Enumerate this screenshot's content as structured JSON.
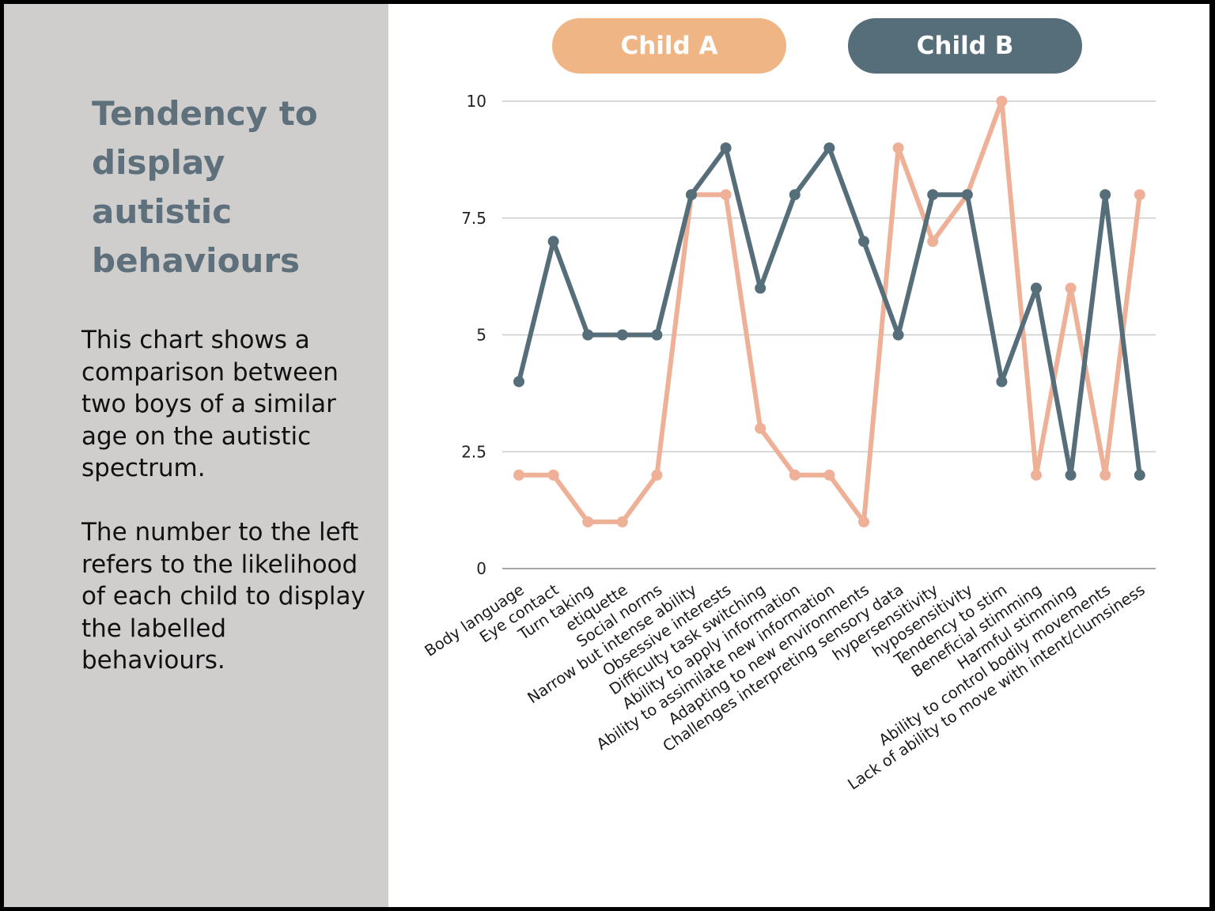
{
  "panel": {
    "title": "Tendency to display autistic behaviours",
    "description_1": "This chart shows a comparison between two boys of a similar age on the autistic spectrum.",
    "description_2": "The number to the left refers to the likelihood of each child to display the labelled behaviours."
  },
  "colors": {
    "panel_bg": "#d0cecd",
    "title": "#5e707c",
    "child_a_pill": "#efb585",
    "child_a_line": "#eeb097",
    "child_b": "#566d7a",
    "grid": "#cccccc"
  },
  "chart_data": {
    "type": "line",
    "title": "",
    "xlabel": "",
    "ylabel": "",
    "ylim": [
      0,
      10
    ],
    "yticks": [
      {
        "value": 0,
        "label": "0"
      },
      {
        "value": 2.5,
        "label": "2.5"
      },
      {
        "value": 5,
        "label": "5"
      },
      {
        "value": 7.5,
        "label": "7.5"
      },
      {
        "value": 10,
        "label": "10"
      }
    ],
    "grid": true,
    "legend": "top",
    "categories": [
      "Body language",
      "Eye contact",
      "Turn taking",
      "etiquette",
      "Social norms",
      "Narrow but intense ability",
      "Obsessive interests",
      "Difficulty task switching",
      "Ability to apply information",
      "Ability to assimilate new information",
      "Adapting to new environments",
      "Challenges interpreting sensory data",
      "hypersensitivity",
      "hyposensitivity",
      "Tendency to stim",
      "Beneficial stimming",
      "Harmful stimming",
      "Ability to control bodily movements",
      "Lack of ability to move with intent/clumsiness"
    ],
    "series": [
      {
        "name": "Child A",
        "color": "#eeb097",
        "values": [
          2,
          2,
          1,
          1,
          2,
          8,
          8,
          3,
          2,
          2,
          1,
          9,
          7,
          8,
          10,
          2,
          6,
          2,
          8
        ]
      },
      {
        "name": "Child B",
        "color": "#566d7a",
        "values": [
          4,
          7,
          5,
          5,
          5,
          8,
          9,
          6,
          8,
          9,
          7,
          5,
          8,
          8,
          4,
          6,
          2,
          8,
          2
        ]
      }
    ]
  }
}
